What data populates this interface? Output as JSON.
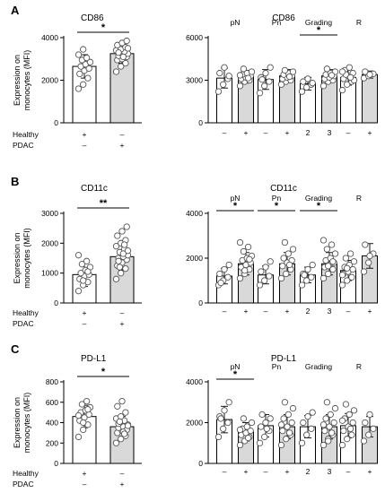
{
  "panels": [
    {
      "letter": "A",
      "left": {
        "title": "CD86",
        "ylabel": [
          "Expression on",
          "monocytes (MFI)"
        ],
        "yticks": [
          0,
          2000,
          4000
        ],
        "ylim": [
          0,
          4000
        ],
        "rows": [
          {
            "label": "Healthy",
            "marks": [
              "+",
              "–"
            ]
          },
          {
            "label": "PDAC",
            "marks": [
              "–",
              "+"
            ]
          }
        ],
        "bars": [
          {
            "fill": "#ffffff",
            "mean": 2650,
            "sd": 550,
            "points": [
              1600,
              1800,
              2100,
              2300,
              2450,
              2550,
              2650,
              2750,
              2850,
              2950,
              3050,
              3200,
              3450
            ]
          },
          {
            "fill": "#d9d9d9",
            "mean": 3250,
            "sd": 450,
            "points": [
              2400,
              2650,
              2800,
              2950,
              3000,
              3100,
              3150,
              3200,
              3250,
              3300,
              3350,
              3400,
              3450,
              3550,
              3650,
              3750,
              3850,
              3300,
              3100,
              3500
            ]
          }
        ],
        "sig": [
          {
            "from": 0,
            "to": 1,
            "label": "*"
          }
        ]
      },
      "right": {
        "title": "CD86",
        "yticks": [
          0,
          3000,
          6000
        ],
        "ylim": [
          0,
          6000
        ],
        "groups": [
          {
            "label": "pN",
            "cats": [
              "–",
              "+"
            ],
            "bars": [
              {
                "fill": "#ffffff",
                "mean": 3150,
                "sd": 700,
                "points": [
                  2200,
                  2700,
                  3100,
                  3500,
                  3900,
                  3300
                ]
              },
              {
                "fill": "#d9d9d9",
                "mean": 3250,
                "sd": 450,
                "points": [
                  2600,
                  2900,
                  3000,
                  3100,
                  3200,
                  3300,
                  3400,
                  3500,
                  3600,
                  3800,
                  3150,
                  3350
                ]
              }
            ]
          },
          {
            "label": "Pn",
            "cats": [
              "–",
              "+"
            ],
            "bars": [
              {
                "fill": "#ffffff",
                "mean": 3050,
                "sd": 700,
                "points": [
                  2100,
                  2600,
                  2900,
                  3200,
                  3500,
                  3900,
                  3050
                ]
              },
              {
                "fill": "#d9d9d9",
                "mean": 3300,
                "sd": 450,
                "points": [
                  2700,
                  2900,
                  3000,
                  3100,
                  3200,
                  3300,
                  3400,
                  3500,
                  3600,
                  3700,
                  3250
                ]
              }
            ]
          },
          {
            "label": "Grading",
            "cats": [
              "2",
              "3"
            ],
            "bars": [
              {
                "fill": "#ffffff",
                "mean": 2750,
                "sd": 450,
                "points": [
                  2200,
                  2500,
                  2700,
                  2900,
                  3100,
                  2800
                ]
              },
              {
                "fill": "#d9d9d9",
                "mean": 3300,
                "sd": 450,
                "points": [
                  2600,
                  2900,
                  3000,
                  3100,
                  3200,
                  3300,
                  3400,
                  3500,
                  3600,
                  3800,
                  3350
                ]
              }
            ],
            "sig": "*"
          },
          {
            "label": "R",
            "cats": [
              "–",
              "+"
            ],
            "bars": [
              {
                "fill": "#ffffff",
                "mean": 3200,
                "sd": 550,
                "points": [
                  2300,
                  2700,
                  2900,
                  3100,
                  3300,
                  3500,
                  3700,
                  3900,
                  3000,
                  3400,
                  3200,
                  3600
                ]
              },
              {
                "fill": "#d9d9d9",
                "mean": 3400,
                "sd": 250,
                "points": [
                  3150,
                  3300,
                  3450,
                  3600,
                  3400
                ]
              }
            ]
          }
        ]
      }
    },
    {
      "letter": "B",
      "left": {
        "title": "CD11c",
        "ylabel": [
          "Expression on",
          "monocytes (MFI)"
        ],
        "yticks": [
          0,
          1000,
          2000,
          3000
        ],
        "ylim": [
          0,
          3000
        ],
        "rows": [
          {
            "label": "Healthy",
            "marks": [
              "+",
              "–"
            ]
          },
          {
            "label": "PDAC",
            "marks": [
              "–",
              "+"
            ]
          }
        ],
        "bars": [
          {
            "fill": "#ffffff",
            "mean": 950,
            "sd": 400,
            "points": [
              400,
              600,
              700,
              800,
              900,
              950,
              1000,
              1100,
              1200,
              1300,
              1400,
              1600,
              750,
              1050
            ]
          },
          {
            "fill": "#d9d9d9",
            "mean": 1550,
            "sd": 450,
            "points": [
              800,
              1000,
              1150,
              1250,
              1350,
              1450,
              1500,
              1550,
              1600,
              1700,
              1800,
              1900,
              2000,
              2100,
              2250,
              2400,
              2550,
              1400,
              1650,
              1750,
              1200,
              1950
            ]
          }
        ],
        "sig": [
          {
            "from": 0,
            "to": 1,
            "label": "**"
          }
        ]
      },
      "right": {
        "title": "CD11c",
        "yticks": [
          0,
          2000,
          4000
        ],
        "ylim": [
          0,
          4000
        ],
        "groups": [
          {
            "label": "pN",
            "cats": [
              "–",
              "+"
            ],
            "bars": [
              {
                "fill": "#ffffff",
                "mean": 1200,
                "sd": 350,
                "points": [
                  800,
                  1000,
                  1150,
                  1300,
                  1500,
                  1700,
                  900
                ]
              },
              {
                "fill": "#d9d9d9",
                "mean": 1750,
                "sd": 500,
                "points": [
                  1100,
                  1300,
                  1500,
                  1600,
                  1700,
                  1800,
                  1900,
                  2000,
                  2100,
                  2300,
                  2500,
                  2700,
                  1450,
                  1950
                ]
              }
            ],
            "sig": "*"
          },
          {
            "label": "Pn",
            "cats": [
              "–",
              "+"
            ],
            "bars": [
              {
                "fill": "#ffffff",
                "mean": 1250,
                "sd": 400,
                "points": [
                  800,
                  1000,
                  1200,
                  1400,
                  1600,
                  1850
                ]
              },
              {
                "fill": "#d9d9d9",
                "mean": 1750,
                "sd": 500,
                "points": [
                  1100,
                  1300,
                  1500,
                  1650,
                  1800,
                  1900,
                  2000,
                  2200,
                  2400,
                  2700,
                  1700
                ]
              }
            ],
            "sig": "*"
          },
          {
            "label": "Grading",
            "cats": [
              "2",
              "3"
            ],
            "bars": [
              {
                "fill": "#ffffff",
                "mean": 1250,
                "sd": 350,
                "points": [
                  800,
                  1000,
                  1150,
                  1300,
                  1500,
                  1700,
                  1250
                ]
              },
              {
                "fill": "#d9d9d9",
                "mean": 1750,
                "sd": 500,
                "points": [
                  1100,
                  1300,
                  1500,
                  1600,
                  1700,
                  1800,
                  1900,
                  2000,
                  2200,
                  2400,
                  2600,
                  2800,
                  1650,
                  1850
                ]
              }
            ],
            "sig": "*"
          },
          {
            "label": "R",
            "cats": [
              "–",
              "+"
            ],
            "bars": [
              {
                "fill": "#ffffff",
                "mean": 1450,
                "sd": 450,
                "points": [
                  800,
                  1000,
                  1150,
                  1300,
                  1400,
                  1500,
                  1600,
                  1700,
                  1850,
                  2000,
                  2200,
                  1250,
                  1550
                ]
              },
              {
                "fill": "#d9d9d9",
                "mean": 2100,
                "sd": 550,
                "points": [
                  1400,
                  1800,
                  2200,
                  2600,
                  2100
                ]
              }
            ]
          }
        ]
      }
    },
    {
      "letter": "C",
      "left": {
        "title": "PD-L1",
        "ylabel": [
          "Expression on",
          "monocytes (MFI)"
        ],
        "yticks": [
          0,
          200,
          400,
          600,
          800
        ],
        "ylim": [
          0,
          800
        ],
        "rows": [
          {
            "label": "Healthy",
            "marks": [
              "+",
              "–"
            ]
          },
          {
            "label": "PDAC",
            "marks": [
              "–",
              "+"
            ]
          }
        ],
        "bars": [
          {
            "fill": "#ffffff",
            "mean": 460,
            "sd": 110,
            "points": [
              260,
              330,
              380,
              420,
              450,
              480,
              500,
              520,
              550,
              580,
              610,
              470,
              400,
              530
            ]
          },
          {
            "fill": "#d9d9d9",
            "mean": 360,
            "sd": 100,
            "points": [
              200,
              240,
              270,
              300,
              320,
              340,
              350,
              360,
              380,
              400,
              420,
              440,
              460,
              500,
              560,
              610,
              330,
              390,
              310,
              370,
              410,
              290
            ]
          }
        ],
        "sig": [
          {
            "from": 0,
            "to": 1,
            "label": "*"
          }
        ]
      },
      "right": {
        "title": "PD-L1",
        "yticks": [
          0,
          2000,
          4000
        ],
        "ylim": [
          0,
          4000
        ],
        "groups": [
          {
            "label": "pN",
            "cats": [
              "–",
              "+"
            ],
            "bars": [
              {
                "fill": "#ffffff",
                "mean": 2150,
                "sd": 650,
                "points": [
                  1300,
                  1700,
                  2000,
                  2300,
                  2600,
                  3000,
                  2200
                ]
              },
              {
                "fill": "#d9d9d9",
                "mean": 1550,
                "sd": 450,
                "points": [
                  900,
                  1100,
                  1300,
                  1400,
                  1500,
                  1600,
                  1700,
                  1800,
                  2000,
                  2200,
                  1250,
                  1650
                ]
              }
            ],
            "sig": "*"
          },
          {
            "label": "Pn",
            "cats": [
              "–",
              "+"
            ],
            "bars": [
              {
                "fill": "#ffffff",
                "mean": 1850,
                "sd": 550,
                "points": [
                  1000,
                  1300,
                  1600,
                  1800,
                  2000,
                  2200,
                  2400,
                  1700
                ]
              },
              {
                "fill": "#d9d9d9",
                "mean": 1800,
                "sd": 600,
                "points": [
                  900,
                  1200,
                  1400,
                  1600,
                  1800,
                  2000,
                  2200,
                  2400,
                  2700,
                  3000,
                  1500,
                  1900
                ]
              }
            ]
          },
          {
            "label": "Grading",
            "cats": [
              "2",
              "3"
            ],
            "bars": [
              {
                "fill": "#ffffff",
                "mean": 1800,
                "sd": 550,
                "points": [
                  1000,
                  1400,
                  1700,
                  2000,
                  2300,
                  2500
                ]
              },
              {
                "fill": "#d9d9d9",
                "mean": 1800,
                "sd": 600,
                "points": [
                  900,
                  1200,
                  1400,
                  1600,
                  1800,
                  2000,
                  2200,
                  2400,
                  2700,
                  3000,
                  1500,
                  1900,
                  1100
                ]
              }
            ]
          },
          {
            "label": "R",
            "cats": [
              "–",
              "+"
            ],
            "bars": [
              {
                "fill": "#ffffff",
                "mean": 1850,
                "sd": 600,
                "points": [
                  900,
                  1200,
                  1400,
                  1600,
                  1800,
                  2000,
                  2200,
                  2400,
                  2600,
                  2900,
                  1700,
                  2100
                ]
              },
              {
                "fill": "#d9d9d9",
                "mean": 1800,
                "sd": 500,
                "points": [
                  1100,
                  1400,
                  1700,
                  2000,
                  2400
                ]
              }
            ]
          }
        ]
      }
    }
  ],
  "colors": {
    "healthy_bar": "#ffffff",
    "pdac_bar": "#d9d9d9",
    "axis": "#000000"
  }
}
